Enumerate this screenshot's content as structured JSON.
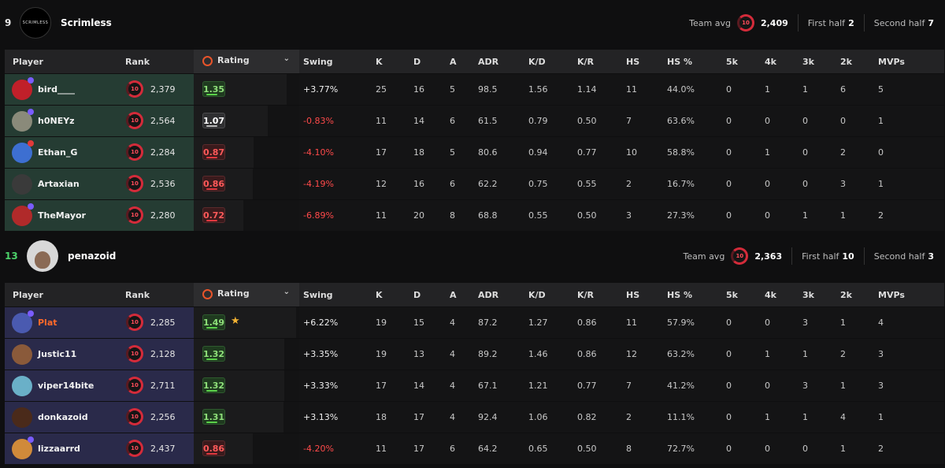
{
  "columns": {
    "player": "Player",
    "rank": "Rank",
    "rating": "Rating",
    "swing": "Swing",
    "k": "K",
    "d": "D",
    "a": "A",
    "adr": "ADR",
    "kd": "K/D",
    "kr": "K/R",
    "hs": "HS",
    "hs_pct": "HS %",
    "k5": "5k",
    "k4": "4k",
    "k3": "3k",
    "k2": "2k",
    "mvps": "MVPs"
  },
  "team_avg_label": "Team avg",
  "first_half_label": "First half",
  "second_half_label": "Second half",
  "badge_level": "10",
  "teams": [
    {
      "score": "9",
      "score_color": "#e6e6e6",
      "name": "Scrimless",
      "logo_text": "SCRIMLESS",
      "team_avg": "2,409",
      "first_half": "2",
      "second_half": "7",
      "row_color": "#253c33",
      "players": [
        {
          "name": "bird____",
          "avatar_color": "#c0202a",
          "dot": "#7a5cff",
          "rank": "2,379",
          "rating": "1.35",
          "rclass": "good",
          "bar": 0.88,
          "star": "",
          "swing": "+3.77%",
          "swing_pos": true,
          "k": "25",
          "d": "16",
          "a": "5",
          "adr": "98.5",
          "kd": "1.56",
          "kr": "1.14",
          "hs": "11",
          "hs_pct": "44.0%",
          "k5": "0",
          "k4": "1",
          "k3": "1",
          "k2": "6",
          "mvps": "5"
        },
        {
          "name": "h0NEYz",
          "avatar_color": "#8a8a7a",
          "dot": "#7a5cff",
          "rank": "2,564",
          "rating": "1.07",
          "rclass": "mid",
          "bar": 0.7,
          "star": "",
          "swing": "-0.83%",
          "swing_pos": false,
          "k": "11",
          "d": "14",
          "a": "6",
          "adr": "61.5",
          "kd": "0.79",
          "kr": "0.50",
          "hs": "7",
          "hs_pct": "63.6%",
          "k5": "0",
          "k4": "0",
          "k3": "0",
          "k2": "0",
          "mvps": "1"
        },
        {
          "name": "Ethan_G",
          "avatar_color": "#3d6fd1",
          "dot": "#e03a3a",
          "rank": "2,284",
          "rating": "0.87",
          "rclass": "bad",
          "bar": 0.57,
          "star": "",
          "swing": "-4.10%",
          "swing_pos": false,
          "k": "17",
          "d": "18",
          "a": "5",
          "adr": "80.6",
          "kd": "0.94",
          "kr": "0.77",
          "hs": "10",
          "hs_pct": "58.8%",
          "k5": "0",
          "k4": "1",
          "k3": "0",
          "k2": "2",
          "mvps": "0"
        },
        {
          "name": "Artaxian",
          "avatar_color": "#3a3a3a",
          "dot": "",
          "rank": "2,536",
          "rating": "0.86",
          "rclass": "bad",
          "bar": 0.56,
          "star": "",
          "swing": "-4.19%",
          "swing_pos": false,
          "k": "12",
          "d": "16",
          "a": "6",
          "adr": "62.2",
          "kd": "0.75",
          "kr": "0.55",
          "hs": "2",
          "hs_pct": "16.7%",
          "k5": "0",
          "k4": "0",
          "k3": "0",
          "k2": "3",
          "mvps": "1"
        },
        {
          "name": "TheMayor",
          "avatar_color": "#b02a2a",
          "dot": "#7a5cff",
          "rank": "2,280",
          "rating": "0.72",
          "rclass": "bad",
          "bar": 0.47,
          "star": "",
          "swing": "-6.89%",
          "swing_pos": false,
          "k": "11",
          "d": "20",
          "a": "8",
          "adr": "68.8",
          "kd": "0.55",
          "kr": "0.50",
          "hs": "3",
          "hs_pct": "27.3%",
          "k5": "0",
          "k4": "0",
          "k3": "1",
          "k2": "1",
          "mvps": "2"
        }
      ]
    },
    {
      "score": "13",
      "score_color": "#4cd36a",
      "name": "penazoid",
      "logo_text": "",
      "team_avg": "2,363",
      "first_half": "10",
      "second_half": "3",
      "row_color": "#2a2a4a",
      "players": [
        {
          "name": "Plat",
          "name_color": "#ff6a2a",
          "avatar_color": "#4a5ab0",
          "dot": "#7a5cff",
          "rank": "2,285",
          "rating": "1.49",
          "rclass": "good",
          "bar": 0.97,
          "star": "★",
          "swing": "+6.22%",
          "swing_pos": true,
          "k": "19",
          "d": "15",
          "a": "4",
          "adr": "87.2",
          "kd": "1.27",
          "kr": "0.86",
          "hs": "11",
          "hs_pct": "57.9%",
          "k5": "0",
          "k4": "0",
          "k3": "3",
          "k2": "1",
          "mvps": "4"
        },
        {
          "name": "Justic11",
          "avatar_color": "#8a5a3a",
          "dot": "",
          "rank": "2,128",
          "rating": "1.32",
          "rclass": "good",
          "bar": 0.86,
          "star": "",
          "swing": "+3.35%",
          "swing_pos": true,
          "k": "19",
          "d": "13",
          "a": "4",
          "adr": "89.2",
          "kd": "1.46",
          "kr": "0.86",
          "hs": "12",
          "hs_pct": "63.2%",
          "k5": "0",
          "k4": "1",
          "k3": "1",
          "k2": "2",
          "mvps": "3"
        },
        {
          "name": "viper14bite",
          "avatar_color": "#6ab0c8",
          "dot": "",
          "rank": "2,711",
          "rating": "1.32",
          "rclass": "good",
          "bar": 0.86,
          "star": "",
          "swing": "+3.33%",
          "swing_pos": true,
          "k": "17",
          "d": "14",
          "a": "4",
          "adr": "67.1",
          "kd": "1.21",
          "kr": "0.77",
          "hs": "7",
          "hs_pct": "41.2%",
          "k5": "0",
          "k4": "0",
          "k3": "3",
          "k2": "1",
          "mvps": "3"
        },
        {
          "name": "donkazoid",
          "avatar_color": "#4a2a1a",
          "dot": "",
          "rank": "2,256",
          "rating": "1.31",
          "rclass": "good",
          "bar": 0.85,
          "star": "",
          "swing": "+3.13%",
          "swing_pos": true,
          "k": "18",
          "d": "17",
          "a": "4",
          "adr": "92.4",
          "kd": "1.06",
          "kr": "0.82",
          "hs": "2",
          "hs_pct": "11.1%",
          "k5": "0",
          "k4": "1",
          "k3": "1",
          "k2": "4",
          "mvps": "1"
        },
        {
          "name": "lizzaarrd",
          "avatar_color": "#d08a3a",
          "dot": "#7a5cff",
          "rank": "2,437",
          "rating": "0.86",
          "rclass": "bad",
          "bar": 0.56,
          "star": "",
          "swing": "-4.20%",
          "swing_pos": false,
          "k": "11",
          "d": "17",
          "a": "6",
          "adr": "64.2",
          "kd": "0.65",
          "kr": "0.50",
          "hs": "8",
          "hs_pct": "72.7%",
          "k5": "0",
          "k4": "0",
          "k3": "0",
          "k2": "1",
          "mvps": "2"
        }
      ]
    }
  ]
}
